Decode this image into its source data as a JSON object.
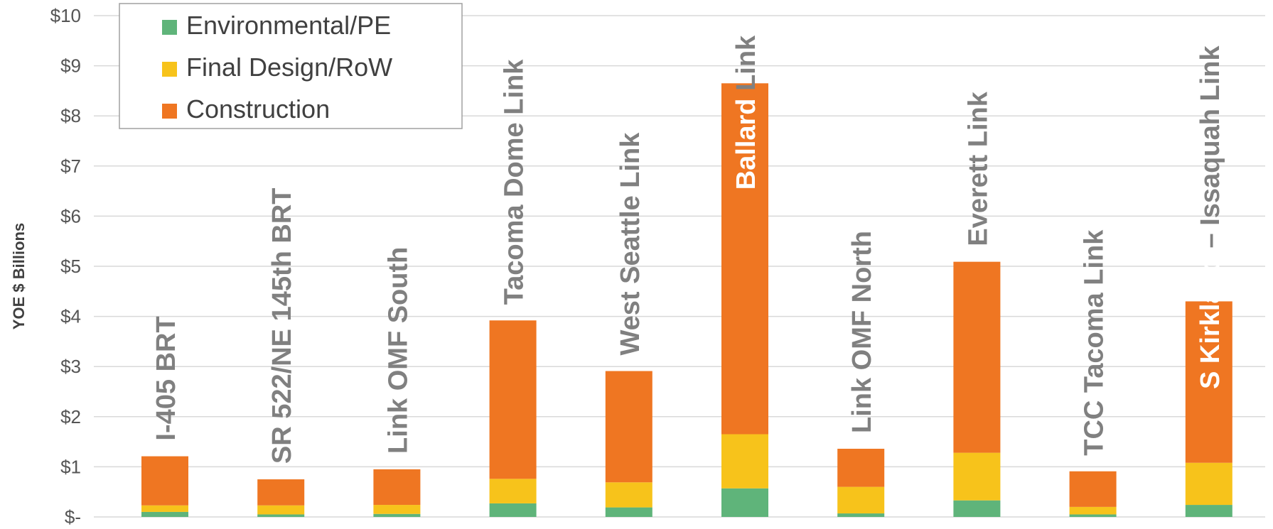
{
  "chart_data": {
    "type": "bar",
    "stacked": true,
    "title": "",
    "xlabel": "",
    "ylabel": "YOE $ Billions",
    "ylim": [
      0,
      10
    ],
    "yticks": [
      0,
      1,
      2,
      3,
      4,
      5,
      6,
      7,
      8,
      9,
      10
    ],
    "ytick_labels": [
      "$-",
      "$1",
      "$2",
      "$3",
      "$4",
      "$5",
      "$6",
      "$7",
      "$8",
      "$9",
      "$10"
    ],
    "grid": true,
    "legend_position": "top-left",
    "categories": [
      "I-405 BRT",
      "SR 522/NE 145th BRT",
      "Link OMF South",
      "Tacoma Dome Link",
      "West Seattle Link",
      "Ballard Link",
      "Link OMF North",
      "Everett Link",
      "TCC Tacoma Link",
      "S Kirkland – Issaquah Link"
    ],
    "label_white_part": [
      "",
      "",
      "",
      "",
      "",
      "Ballard",
      "",
      "",
      "",
      "S Kirkland"
    ],
    "label_gray_part": [
      "I-405 BRT",
      "SR 522/NE 145th BRT",
      "Link OMF South",
      "Tacoma Dome Link",
      "West Seattle Link",
      " Link",
      "Link OMF North",
      "Everett Link",
      "TCC Tacoma Link",
      " – Issaquah Link"
    ],
    "series": [
      {
        "name": "Environmental/PE",
        "color": "#5FB47A",
        "values": [
          0.1,
          0.05,
          0.06,
          0.27,
          0.19,
          0.57,
          0.07,
          0.33,
          0.05,
          0.24
        ]
      },
      {
        "name": "Final Design/RoW",
        "color": "#F7C31B",
        "values": [
          0.13,
          0.18,
          0.18,
          0.49,
          0.5,
          1.08,
          0.53,
          0.95,
          0.15,
          0.84
        ]
      },
      {
        "name": "Construction",
        "color": "#EF7622",
        "values": [
          0.98,
          0.52,
          0.71,
          3.16,
          2.22,
          7.0,
          0.76,
          3.81,
          0.71,
          3.22
        ]
      }
    ],
    "colors": {
      "label_gray": "#808080",
      "label_white": "#ffffff",
      "grid": "#D9D9D9",
      "legend_border": "#A0A0A0"
    }
  }
}
